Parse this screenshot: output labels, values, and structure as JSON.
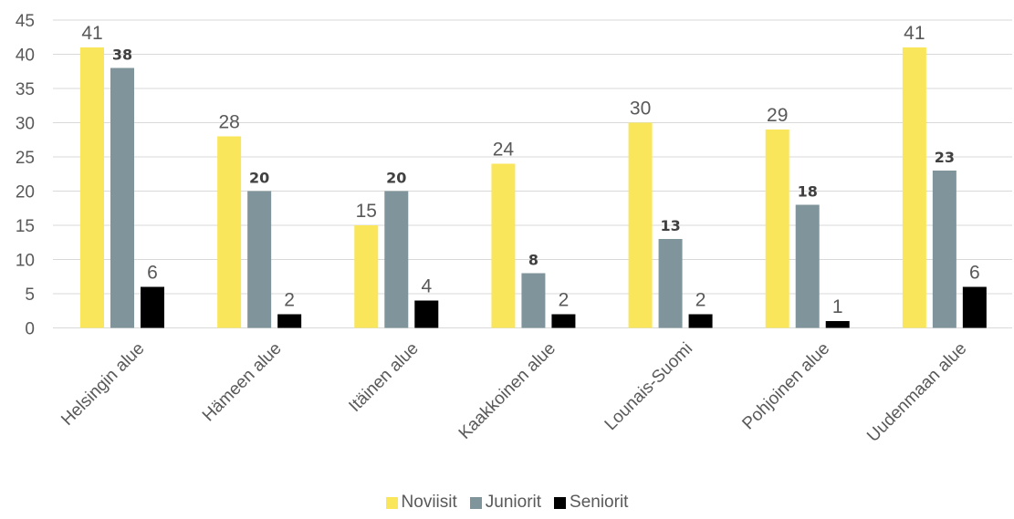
{
  "chart_data": {
    "type": "bar",
    "categories": [
      "Helsingin alue",
      "Hämeen alue",
      "Itäinen alue",
      "Kaakkoinen alue",
      "Lounais-Suomi",
      "Pohjoinen alue",
      "Uudenmaan alue"
    ],
    "series": [
      {
        "name": "Noviisit",
        "color": "#f9e65a",
        "label_style": "light",
        "values": [
          41,
          28,
          15,
          24,
          30,
          29,
          41
        ]
      },
      {
        "name": "Juniorit",
        "color": "#80959b",
        "label_style": "bold",
        "values": [
          38,
          20,
          20,
          8,
          13,
          18,
          23
        ]
      },
      {
        "name": "Seniorit",
        "color": "#000000",
        "label_style": "light",
        "values": [
          6,
          2,
          4,
          2,
          2,
          1,
          6
        ]
      }
    ],
    "ylim": [
      0,
      45
    ],
    "yticks": [
      0,
      5,
      10,
      15,
      20,
      25,
      30,
      35,
      40,
      45
    ],
    "grid": true,
    "legend_position": "bottom"
  }
}
